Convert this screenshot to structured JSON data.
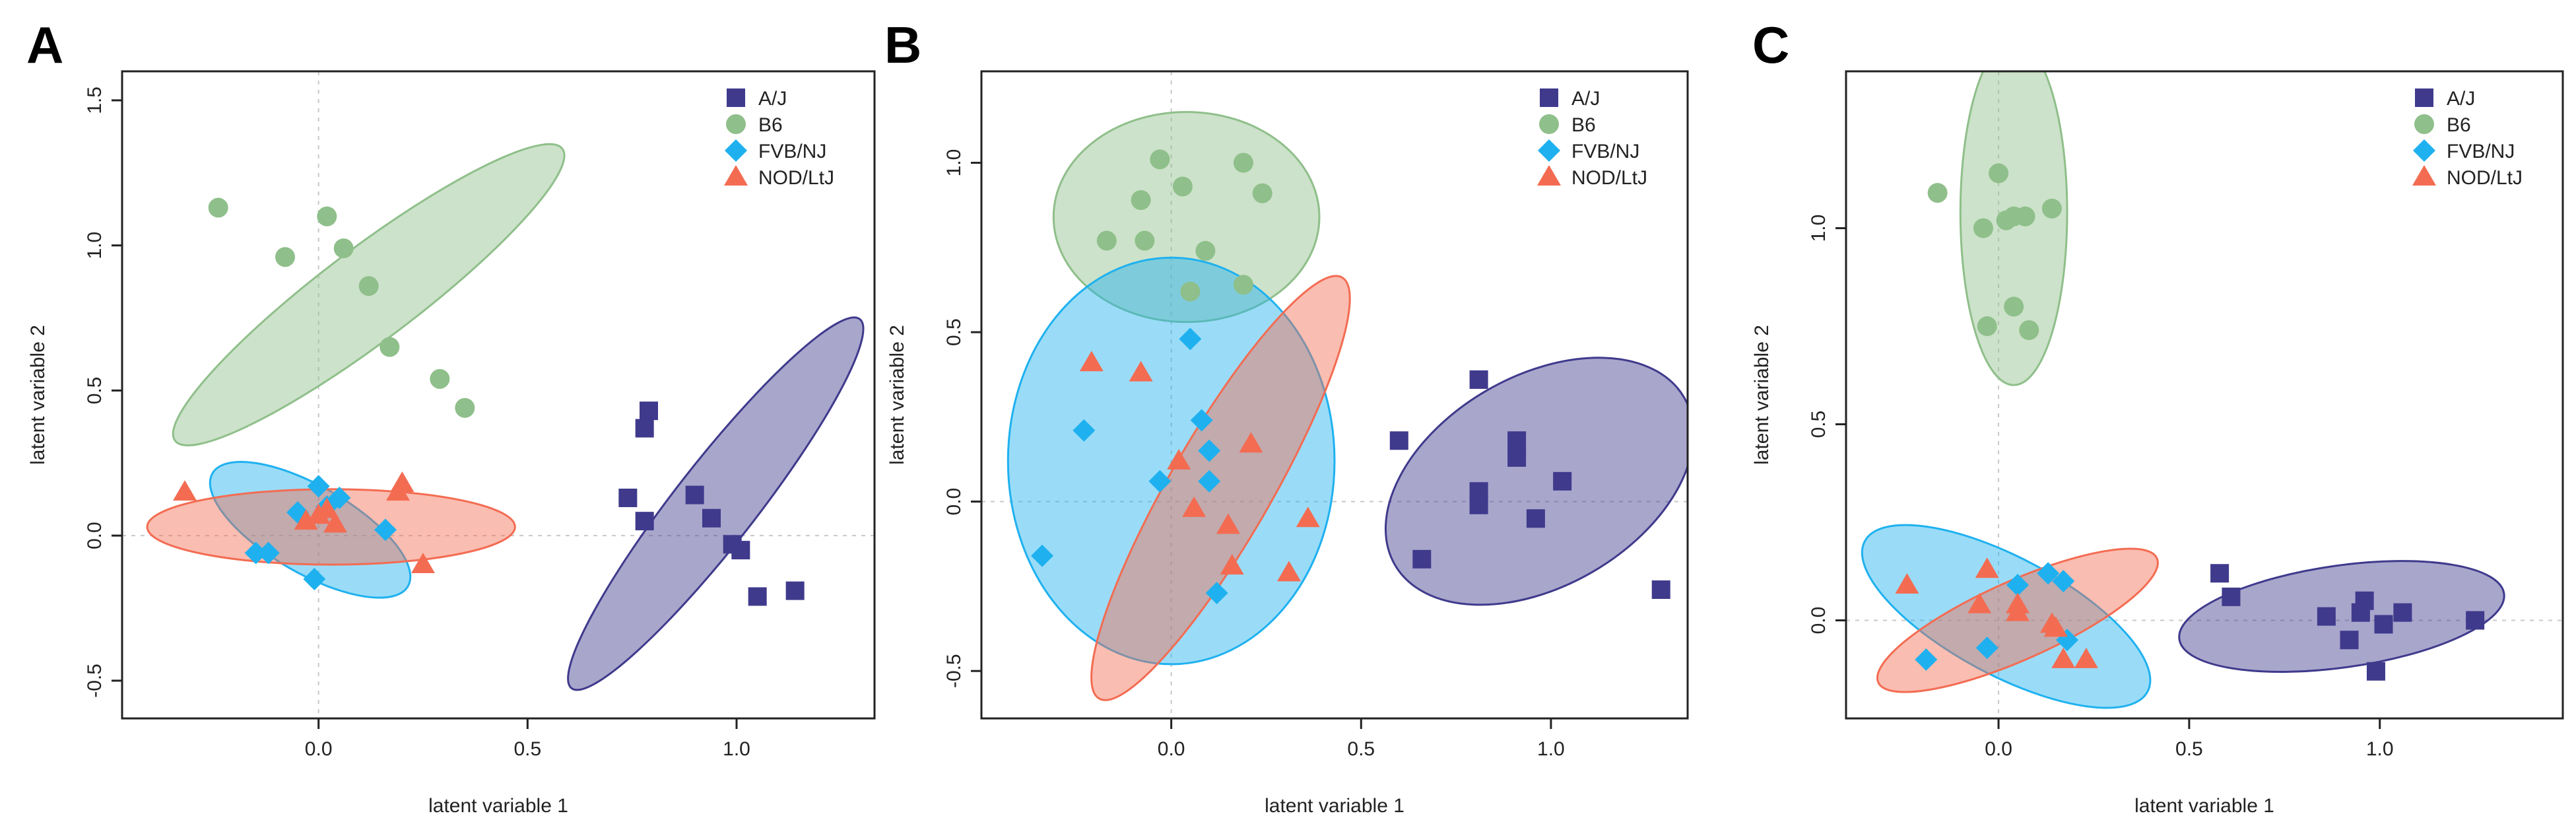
{
  "colors": {
    "A/J": "#3f3a8c",
    "B6": "#8fbf8a",
    "FVB/NJ": "#1fb1ef",
    "NOD/LtJ": "#f36c52"
  },
  "chart_data": [
    {
      "type": "scatter",
      "panel_label": "A",
      "title": "",
      "xlabel": "latent variable 1",
      "ylabel": "latent variable 2",
      "xlim": [
        -0.47,
        1.33
      ],
      "ylim": [
        -0.63,
        1.6
      ],
      "xticks": [
        0.0,
        0.5,
        1.0
      ],
      "yticks": [
        -0.5,
        0.0,
        0.5,
        1.0,
        1.5
      ],
      "xtick_labels": [
        "0.0",
        "0.5",
        "1.0"
      ],
      "ytick_labels": [
        "-0.5",
        "0.0",
        "0.5",
        "1.0",
        "1.5"
      ],
      "legend": {
        "position": "top-right",
        "entries": [
          "A/J",
          "B6",
          "FVB/NJ",
          "NOD/LtJ"
        ]
      },
      "series": [
        {
          "name": "A/J",
          "marker": "square",
          "points": [
            [
              0.79,
              0.43
            ],
            [
              0.78,
              0.37
            ],
            [
              0.74,
              0.13
            ],
            [
              0.78,
              0.05
            ],
            [
              0.9,
              0.14
            ],
            [
              0.94,
              0.06
            ],
            [
              0.99,
              -0.03
            ],
            [
              1.01,
              -0.05
            ],
            [
              1.05,
              -0.21
            ],
            [
              1.14,
              -0.19
            ]
          ]
        },
        {
          "name": "B6",
          "marker": "circle",
          "points": [
            [
              -0.24,
              1.13
            ],
            [
              0.02,
              1.1
            ],
            [
              -0.08,
              0.96
            ],
            [
              0.06,
              0.99
            ],
            [
              0.12,
              0.86
            ],
            [
              0.17,
              0.65
            ],
            [
              0.29,
              0.54
            ],
            [
              0.35,
              0.44
            ]
          ]
        },
        {
          "name": "FVB/NJ",
          "marker": "diamond",
          "points": [
            [
              -0.05,
              0.08
            ],
            [
              0.0,
              0.17
            ],
            [
              0.05,
              0.13
            ],
            [
              -0.15,
              -0.06
            ],
            [
              -0.12,
              -0.06
            ],
            [
              0.16,
              0.02
            ],
            [
              -0.01,
              -0.15
            ],
            [
              0.02,
              0.1
            ]
          ]
        },
        {
          "name": "NOD/LtJ",
          "marker": "triangle",
          "points": [
            [
              -0.32,
              0.15
            ],
            [
              -0.03,
              0.05
            ],
            [
              0.0,
              0.07
            ],
            [
              0.04,
              0.04
            ],
            [
              0.02,
              0.09
            ],
            [
              0.19,
              0.15
            ],
            [
              0.2,
              0.18
            ],
            [
              0.25,
              -0.1
            ]
          ]
        }
      ],
      "ellipses": [
        {
          "group": "B6",
          "center": [
            0.12,
            0.83
          ],
          "semi_axes": [
            0.58,
            0.16
          ],
          "angle_deg": -37
        },
        {
          "group": "A/J",
          "center": [
            0.95,
            0.11
          ],
          "semi_axes": [
            0.56,
            0.14
          ],
          "angle_deg": -52
        },
        {
          "group": "FVB/NJ",
          "center": [
            -0.02,
            0.02
          ],
          "semi_axes": [
            0.27,
            0.15
          ],
          "angle_deg": 30
        },
        {
          "group": "NOD/LtJ",
          "center": [
            0.03,
            0.03
          ],
          "semi_axes": [
            0.44,
            0.13
          ],
          "angle_deg": 0
        }
      ]
    },
    {
      "type": "scatter",
      "panel_label": "B",
      "title": "",
      "xlabel": "latent variable 1",
      "ylabel": "latent variable 2",
      "xlim": [
        -0.5,
        1.36
      ],
      "ylim": [
        -0.64,
        1.27
      ],
      "xticks": [
        0.0,
        0.5,
        1.0
      ],
      "yticks": [
        -0.5,
        0.0,
        0.5,
        1.0
      ],
      "xtick_labels": [
        "0.0",
        "0.5",
        "1.0"
      ],
      "ytick_labels": [
        "-0.5",
        "0.0",
        "0.5",
        "1.0"
      ],
      "legend": {
        "position": "top-right",
        "entries": [
          "A/J",
          "B6",
          "FVB/NJ",
          "NOD/LtJ"
        ]
      },
      "series": [
        {
          "name": "A/J",
          "marker": "square",
          "points": [
            [
              0.81,
              0.36
            ],
            [
              0.6,
              0.18
            ],
            [
              0.91,
              0.18
            ],
            [
              0.91,
              0.13
            ],
            [
              0.81,
              0.03
            ],
            [
              0.81,
              -0.01
            ],
            [
              0.96,
              -0.05
            ],
            [
              1.03,
              0.06
            ],
            [
              0.66,
              -0.17
            ],
            [
              1.29,
              -0.26
            ]
          ]
        },
        {
          "name": "B6",
          "marker": "circle",
          "points": [
            [
              -0.03,
              1.01
            ],
            [
              0.19,
              1.0
            ],
            [
              -0.08,
              0.89
            ],
            [
              0.03,
              0.93
            ],
            [
              0.24,
              0.91
            ],
            [
              -0.17,
              0.77
            ],
            [
              -0.07,
              0.77
            ],
            [
              0.09,
              0.74
            ],
            [
              0.05,
              0.62
            ],
            [
              0.19,
              0.64
            ]
          ]
        },
        {
          "name": "FVB/NJ",
          "marker": "diamond",
          "points": [
            [
              0.05,
              0.48
            ],
            [
              -0.23,
              0.21
            ],
            [
              0.08,
              0.24
            ],
            [
              0.1,
              0.15
            ],
            [
              -0.03,
              0.06
            ],
            [
              0.1,
              0.06
            ],
            [
              0.12,
              -0.27
            ],
            [
              -0.34,
              -0.16
            ]
          ]
        },
        {
          "name": "NOD/LtJ",
          "marker": "triangle",
          "points": [
            [
              -0.21,
              0.41
            ],
            [
              -0.08,
              0.38
            ],
            [
              0.02,
              0.12
            ],
            [
              0.21,
              0.17
            ],
            [
              0.06,
              -0.02
            ],
            [
              0.15,
              -0.07
            ],
            [
              0.36,
              -0.05
            ],
            [
              0.16,
              -0.19
            ],
            [
              0.31,
              -0.21
            ]
          ]
        }
      ],
      "ellipses": [
        {
          "group": "B6",
          "center": [
            0.04,
            0.84
          ],
          "semi_axes": [
            0.35,
            0.31
          ],
          "angle_deg": 0
        },
        {
          "group": "A/J",
          "center": [
            0.97,
            0.06
          ],
          "semi_axes": [
            0.44,
            0.31
          ],
          "angle_deg": -30
        },
        {
          "group": "FVB/NJ",
          "center": [
            0.0,
            0.12
          ],
          "semi_axes": [
            0.43,
            0.6
          ],
          "angle_deg": 0
        },
        {
          "group": "NOD/LtJ",
          "center": [
            0.13,
            0.04
          ],
          "semi_axes": [
            0.64,
            0.15
          ],
          "angle_deg": -60
        }
      ]
    },
    {
      "type": "scatter",
      "panel_label": "C",
      "title": "",
      "xlabel": "latent variable 1",
      "ylabel": "latent variable 2",
      "xlim": [
        -0.4,
        1.48
      ],
      "ylim": [
        -0.25,
        1.4
      ],
      "xticks": [
        0.0,
        0.5,
        1.0
      ],
      "yticks": [
        0.0,
        0.5,
        1.0
      ],
      "xtick_labels": [
        "0.0",
        "0.5",
        "1.0"
      ],
      "ytick_labels": [
        "0.0",
        "0.5",
        "1.0"
      ],
      "legend": {
        "position": "top-right",
        "entries": [
          "A/J",
          "B6",
          "FVB/NJ",
          "NOD/LtJ"
        ]
      },
      "series": [
        {
          "name": "A/J",
          "marker": "square",
          "points": [
            [
              0.58,
              0.12
            ],
            [
              0.61,
              0.06
            ],
            [
              0.86,
              0.01
            ],
            [
              0.96,
              0.05
            ],
            [
              0.95,
              0.02
            ],
            [
              1.06,
              0.02
            ],
            [
              1.01,
              -0.01
            ],
            [
              0.92,
              -0.05
            ],
            [
              1.25,
              0.0
            ],
            [
              0.99,
              -0.13
            ]
          ]
        },
        {
          "name": "B6",
          "marker": "circle",
          "points": [
            [
              -0.16,
              1.09
            ],
            [
              0.0,
              1.14
            ],
            [
              -0.04,
              1.0
            ],
            [
              0.02,
              1.02
            ],
            [
              0.04,
              1.03
            ],
            [
              0.07,
              1.03
            ],
            [
              0.14,
              1.05
            ],
            [
              0.04,
              0.8
            ],
            [
              -0.03,
              0.75
            ],
            [
              0.08,
              0.74
            ]
          ]
        },
        {
          "name": "FVB/NJ",
          "marker": "diamond",
          "points": [
            [
              0.13,
              0.12
            ],
            [
              0.17,
              0.1
            ],
            [
              0.05,
              0.09
            ],
            [
              0.18,
              -0.05
            ],
            [
              -0.03,
              -0.07
            ],
            [
              -0.19,
              -0.1
            ]
          ]
        },
        {
          "name": "NOD/LtJ",
          "marker": "triangle",
          "points": [
            [
              -0.24,
              0.09
            ],
            [
              -0.03,
              0.13
            ],
            [
              -0.05,
              0.04
            ],
            [
              0.05,
              0.04
            ],
            [
              0.05,
              0.02
            ],
            [
              0.14,
              -0.01
            ],
            [
              0.15,
              -0.02
            ],
            [
              0.17,
              -0.1
            ],
            [
              0.23,
              -0.1
            ]
          ]
        }
      ],
      "ellipses": [
        {
          "group": "B6",
          "center": [
            0.04,
            1.04
          ],
          "semi_axes": [
            0.14,
            0.44
          ],
          "angle_deg": 0
        },
        {
          "group": "A/J",
          "center": [
            0.9,
            0.01
          ],
          "semi_axes": [
            0.43,
            0.13
          ],
          "angle_deg": -8
        },
        {
          "group": "FVB/NJ",
          "center": [
            0.02,
            0.01
          ],
          "semi_axes": [
            0.42,
            0.15
          ],
          "angle_deg": 28
        },
        {
          "group": "NOD/LtJ",
          "center": [
            0.05,
            0.0
          ],
          "semi_axes": [
            0.4,
            0.1
          ],
          "angle_deg": -24
        }
      ]
    }
  ]
}
